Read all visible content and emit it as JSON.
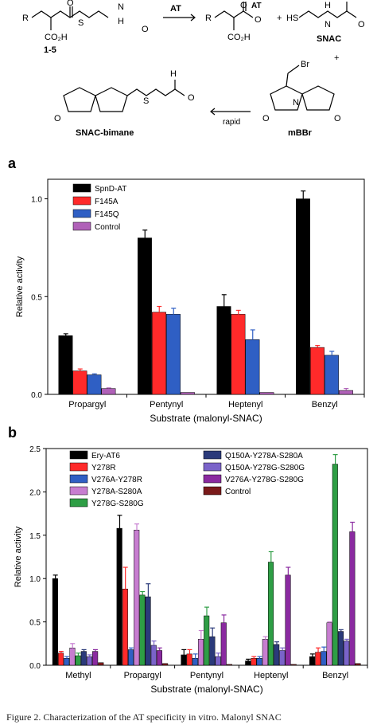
{
  "scheme": {
    "labels": {
      "r1": "R",
      "r2": "R",
      "at_arrow": "AT",
      "at_sup": "AT",
      "cooh1": "CO₂H",
      "cooh2": "CO₂H",
      "plus1": "+",
      "plus2": "+",
      "hs": "HS",
      "n1": "N",
      "h1": "H",
      "n2": "N",
      "h2": "H",
      "n3": "N",
      "h3": "H",
      "s1": "S",
      "s2": "S",
      "o1": "O",
      "o2": "O",
      "o3": "O",
      "o4": "O",
      "o5": "O",
      "o6": "O",
      "o7": "O",
      "o8": "O",
      "o9": "O",
      "br": "Br",
      "rapid": "rapid"
    },
    "compound_1_5": "1-5",
    "snac": "SNAC",
    "snac_bimane": "SNAC-bimane",
    "mbbr": "mBBr"
  },
  "chart_data": [
    {
      "panel": "a",
      "type": "bar",
      "ylabel": "Relative activity",
      "xlabel": "Substrate (malonyl-SNAC)",
      "ylim": [
        0,
        1.1
      ],
      "yticks": [
        "0.0",
        "0.5",
        "1.0"
      ],
      "categories": [
        "Propargyl",
        "Pentynyl",
        "Heptenyl",
        "Benzyl"
      ],
      "legend_position": "top-left",
      "series": [
        {
          "name": "SpnD-AT",
          "color": "#000000",
          "values": [
            0.3,
            0.8,
            0.45,
            1.0
          ],
          "errors": [
            0.01,
            0.04,
            0.06,
            0.04
          ]
        },
        {
          "name": "F145A",
          "color": "#ff2a2a",
          "values": [
            0.12,
            0.42,
            0.41,
            0.24
          ],
          "errors": [
            0.01,
            0.03,
            0.02,
            0.01
          ]
        },
        {
          "name": "F145Q",
          "color": "#2f5fc4",
          "values": [
            0.1,
            0.41,
            0.28,
            0.2
          ],
          "errors": [
            0.005,
            0.03,
            0.05,
            0.02
          ]
        },
        {
          "name": "Control",
          "color": "#b061b8",
          "values": [
            0.03,
            0.01,
            0.01,
            0.02
          ],
          "errors": [
            0.003,
            0.0,
            0.0,
            0.01
          ]
        }
      ]
    },
    {
      "panel": "b",
      "type": "bar",
      "ylabel": "Relative activity",
      "xlabel": "Substrate (malonyl-SNAC)",
      "ylim": [
        0,
        2.5
      ],
      "yticks": [
        "0.0",
        "0.5",
        "1.0",
        "1.5",
        "2.0",
        "2.5"
      ],
      "categories": [
        "Methyl",
        "Propargyl",
        "Pentynyl",
        "Heptenyl",
        "Benzyl"
      ],
      "legend_position": "top",
      "series": [
        {
          "name": "Ery-AT6",
          "color": "#000000",
          "values": [
            1.0,
            1.58,
            0.12,
            0.05,
            0.1
          ],
          "errors": [
            0.04,
            0.15,
            0.06,
            0.02,
            0.03
          ]
        },
        {
          "name": "Y278R",
          "color": "#ff2a2a",
          "values": [
            0.14,
            0.88,
            0.13,
            0.08,
            0.15
          ],
          "errors": [
            0.02,
            0.25,
            0.05,
            0.02,
            0.05
          ]
        },
        {
          "name": "V276A-Y278R",
          "color": "#2f5fc4",
          "values": [
            0.08,
            0.18,
            0.08,
            0.08,
            0.16
          ],
          "errors": [
            0.02,
            0.02,
            0.05,
            0.02,
            0.05
          ]
        },
        {
          "name": "Y278A-S280A",
          "color": "#c77dd0",
          "values": [
            0.2,
            1.56,
            0.3,
            0.3,
            0.49
          ],
          "errors": [
            0.05,
            0.07,
            0.1,
            0.03,
            0.01
          ]
        },
        {
          "name": "Y278G-S280G",
          "color": "#2e9e45",
          "values": [
            0.11,
            0.81,
            0.57,
            1.19,
            2.32
          ],
          "errors": [
            0.03,
            0.04,
            0.1,
            0.12,
            0.11
          ]
        },
        {
          "name": "Q150A-Y278A-S280A",
          "color": "#2b3a7a",
          "values": [
            0.16,
            0.79,
            0.33,
            0.24,
            0.39
          ],
          "errors": [
            0.02,
            0.15,
            0.1,
            0.03,
            0.02
          ]
        },
        {
          "name": "Q150A-Y278G-S280G",
          "color": "#7a63c9",
          "values": [
            0.1,
            0.23,
            0.1,
            0.17,
            0.28
          ],
          "errors": [
            0.02,
            0.05,
            0.04,
            0.03,
            0.02
          ]
        },
        {
          "name": "V276A-Y278G-S280G",
          "color": "#8a2aa0",
          "values": [
            0.16,
            0.17,
            0.49,
            1.04,
            1.54
          ],
          "errors": [
            0.02,
            0.03,
            0.09,
            0.09,
            0.11
          ]
        },
        {
          "name": "Control",
          "color": "#7a1a1a",
          "values": [
            0.03,
            0.02,
            0.01,
            0.01,
            0.02
          ],
          "errors": [
            0.0,
            0.0,
            0.0,
            0.0,
            0.0
          ]
        }
      ]
    }
  ],
  "caption": "Figure 2.  Characterization of the AT specificity in vitro. Malonyl SNAC"
}
